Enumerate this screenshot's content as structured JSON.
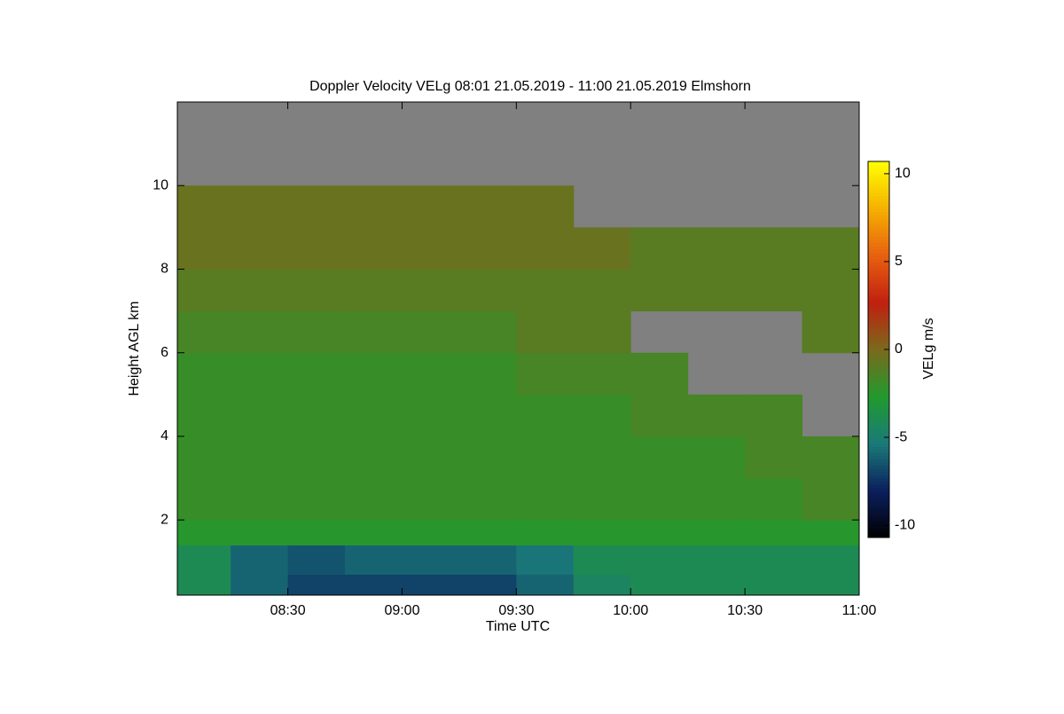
{
  "chart_data": {
    "type": "heatmap",
    "title": "Doppler Velocity VELg   08:01 21.05.2019 - 11:00 21.05.2019 Elmshorn",
    "x_label": "Time UTC",
    "y_label": "Height AGL km",
    "colorbar_label": "VELg m/s",
    "x": [
      "08:01",
      "08:15",
      "08:30",
      "08:45",
      "09:00",
      "09:15",
      "09:30",
      "09:45",
      "10:00",
      "10:15",
      "10:30",
      "10:45",
      "11:00"
    ],
    "y": [
      0.2,
      0.7,
      1.4,
      2,
      3,
      4,
      5,
      6,
      7,
      8,
      9,
      10,
      12
    ],
    "values": [
      [
        -4,
        -6,
        -7,
        -7,
        -7,
        -7,
        -6,
        -4.5,
        -4,
        -4,
        -4,
        -4
      ],
      [
        -4,
        -6,
        -6.5,
        -6,
        -6,
        -6,
        -5.5,
        -4,
        -4,
        -4,
        -4,
        -4
      ],
      [
        -2.5,
        -2.5,
        -2.5,
        -2.5,
        -2.5,
        -2.5,
        -2.5,
        -2.5,
        -2.5,
        -2.5,
        -2.5,
        -2.5
      ],
      [
        -2,
        -2,
        -2,
        -2,
        -2,
        -2,
        -2,
        -2,
        -2,
        -2,
        -2,
        -1.5
      ],
      [
        -2,
        -2,
        -2,
        -2,
        -2,
        -2,
        -2,
        -2,
        -2,
        -2,
        -1.5,
        -1.5
      ],
      [
        -2,
        -2,
        -2,
        -2,
        -2,
        -2,
        -2,
        -2,
        -1.5,
        -1.5,
        -1.5,
        null
      ],
      [
        -2,
        -2,
        -2,
        -2,
        -2,
        -2,
        -1.5,
        -1.5,
        -1.5,
        null,
        null,
        null
      ],
      [
        -1.5,
        -1.5,
        -1.5,
        -1.5,
        -1.5,
        -1.5,
        -1,
        -1,
        null,
        null,
        null,
        -1
      ],
      [
        -1,
        -1,
        -1,
        -1,
        -1,
        -1,
        -1,
        -1,
        -1,
        -1,
        -1,
        -1
      ],
      [
        -0.5,
        -0.5,
        -0.5,
        -0.5,
        -0.5,
        -0.5,
        -0.5,
        -0.5,
        -1,
        -1,
        -1,
        -1
      ],
      [
        -0.5,
        -0.5,
        -0.5,
        -0.5,
        -0.5,
        -0.5,
        -0.5,
        null,
        null,
        null,
        null,
        null
      ],
      [
        null,
        null,
        null,
        null,
        null,
        null,
        null,
        null,
        null,
        null,
        null,
        null
      ]
    ],
    "xlim": [
      "08:01",
      "11:00"
    ],
    "xticks": [
      "08:30",
      "09:00",
      "09:30",
      "10:00",
      "10:30",
      "11:00"
    ],
    "ylim": [
      0.2,
      12
    ],
    "yticks": [
      2,
      4,
      6,
      8,
      10
    ],
    "clim": [
      -10.7,
      10.7
    ],
    "cticks": [
      -10,
      -5,
      0,
      5,
      10
    ],
    "colormap": [
      "#000000",
      "#0b1f5e",
      "#1a7a78",
      "#219a2e",
      "#7a6a1c",
      "#c02010",
      "#e86010",
      "#f5b000",
      "#ffff00"
    ],
    "nodata_color": "#808080"
  }
}
